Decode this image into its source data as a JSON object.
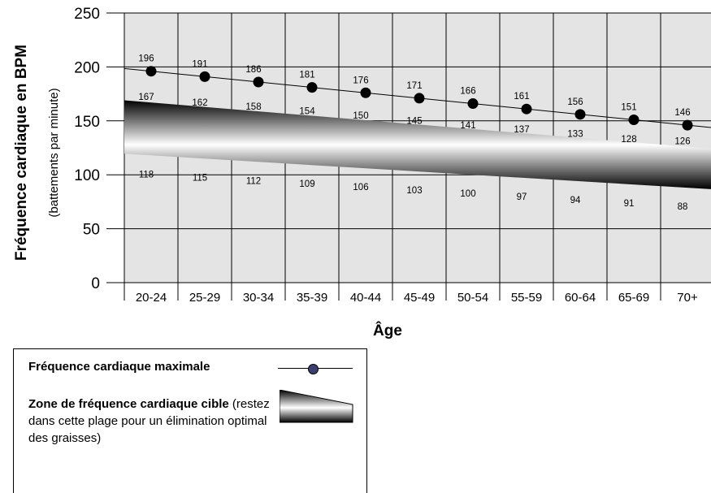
{
  "chart_data": {
    "type": "line",
    "ylabel": "Fréquence cardiaque en BPM",
    "ylabel_sub": "(battements par minute)",
    "xlabel": "Âge",
    "ylim": [
      0,
      250
    ],
    "yticks": [
      "0",
      "50",
      "100",
      "150",
      "200",
      "250"
    ],
    "categories": [
      "20-24",
      "25-29",
      "30-34",
      "35-39",
      "40-44",
      "45-49",
      "50-54",
      "55-59",
      "60-64",
      "65-69",
      "70+"
    ],
    "grid": true,
    "series": [
      {
        "name": "Fréquence cardiaque maximale",
        "type": "line-marker",
        "values": [
          196,
          191,
          186,
          181,
          176,
          171,
          166,
          161,
          156,
          151,
          146
        ],
        "labels": [
          "196",
          "191",
          "186",
          "181",
          "176",
          "171",
          "166",
          "161",
          "156",
          "151",
          "146"
        ]
      },
      {
        "name": "Zone upper",
        "type": "band-upper",
        "values": [
          167,
          162,
          158,
          154,
          150,
          145,
          141,
          137,
          133,
          128,
          126
        ],
        "labels": [
          "167",
          "162",
          "158",
          "154",
          "150",
          "145",
          "141",
          "137",
          "133",
          "128",
          "126"
        ]
      },
      {
        "name": "Zone lower",
        "type": "band-lower",
        "values": [
          118,
          115,
          112,
          109,
          106,
          103,
          100,
          97,
          94,
          91,
          88
        ],
        "labels": [
          "118",
          "115",
          "112",
          "109",
          "106",
          "103",
          "100",
          "97",
          "94",
          "91",
          "88"
        ]
      }
    ],
    "colors": {
      "plot_bg": "#e4e4e4",
      "grid": "#000000",
      "marker": "#000000"
    }
  },
  "legend": {
    "max_label": "Fréquence cardiaque maximale",
    "zone_label_bold": "Zone de fréquence cardiaque cible",
    "zone_label_rest": " (restez dans cette plage pour un élimination optimal des graisses)",
    "dot_color": "#3b3f6e"
  }
}
